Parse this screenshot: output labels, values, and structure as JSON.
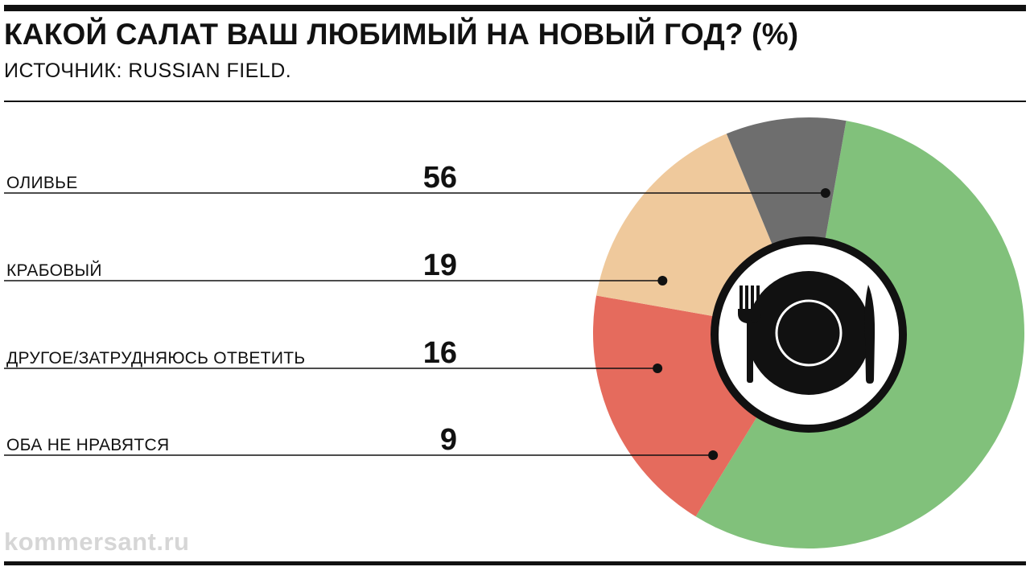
{
  "header": {
    "title": "КАКОЙ САЛАТ ВАШ ЛЮБИМЫЙ НА НОВЫЙ ГОД? (%)",
    "source": "ИСТОЧНИК: RUSSIAN FIELD."
  },
  "footer": {
    "watermark": "kommersant.ru"
  },
  "center_icon": "plate-fork-knife-icon",
  "chart_data": {
    "type": "pie",
    "unit": "%",
    "categories": [
      "ОЛИВЬЕ",
      "КРАБОВЫЙ",
      "ДРУГОЕ/ЗАТРУДНЯЮСЬ ОТВЕТИТЬ",
      "ОБА НЕ НРАВЯТСЯ"
    ],
    "values": [
      56,
      19,
      16,
      9
    ],
    "value_labels": [
      "56",
      "19",
      "16",
      "9"
    ],
    "colors": [
      "#81c17b",
      "#e56b5d",
      "#efc99c",
      "#6e6e6e"
    ],
    "start_angle_deg": 10,
    "direction": "clockwise",
    "legend": "left",
    "title": "",
    "xlabel": "",
    "ylabel": ""
  }
}
